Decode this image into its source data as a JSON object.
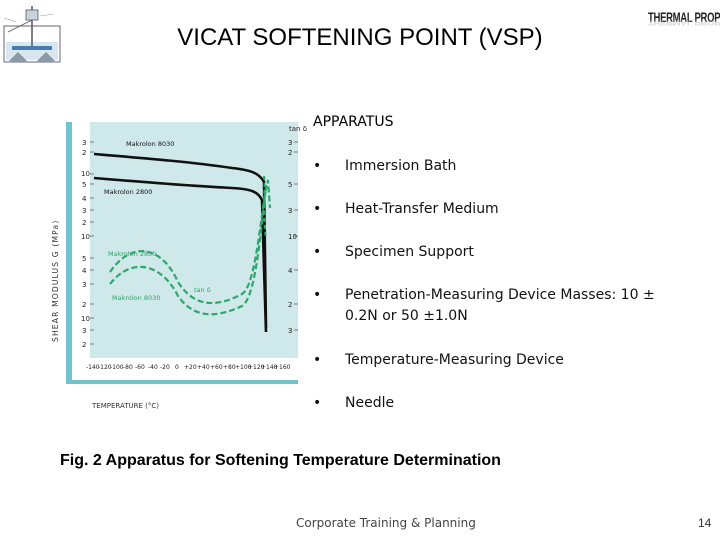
{
  "slide": {
    "title": "VICAT SOFTENING POINT (VSP)",
    "logo_text": "THERMAL PROPERTIES",
    "section_heading": "APPARATUS",
    "bullets": [
      "Immersion Bath",
      "Heat-Transfer Medium",
      "Specimen Support",
      "Penetration-Measuring Device Masses: 10 ± 0.2N or 50 ±1.0N",
      "Temperature-Measuring Device",
      "Needle"
    ],
    "bullet_symbol": "•",
    "caption": "Fig. 2 Apparatus for Softening Temperature Determination",
    "footer": "Corporate Training & Planning",
    "page_number": "14"
  },
  "figure": {
    "panel_color": "#cfe8ea",
    "labels": {
      "makrolon_8030_black": "Makrolon 8030",
      "makrolon_2800_black": "Makrolon 2800",
      "makrolon_2800_green": "Makrolon 2800",
      "makrolon_8030_green": "Makrolon 8030",
      "tan_top": "tan δ",
      "tan_mid": "tan δ",
      "y_axis_label": "SHEAR MODULUS G (MPa)",
      "x_axis_label": "TEMPERATURE (°C)"
    },
    "x_ticks": [
      "-140",
      "-120",
      "-100",
      "-80",
      "-60",
      "-40",
      "-20",
      "0",
      "+20",
      "+40",
      "+60",
      "+80",
      "+100",
      "+120",
      "+140",
      "+160"
    ]
  }
}
